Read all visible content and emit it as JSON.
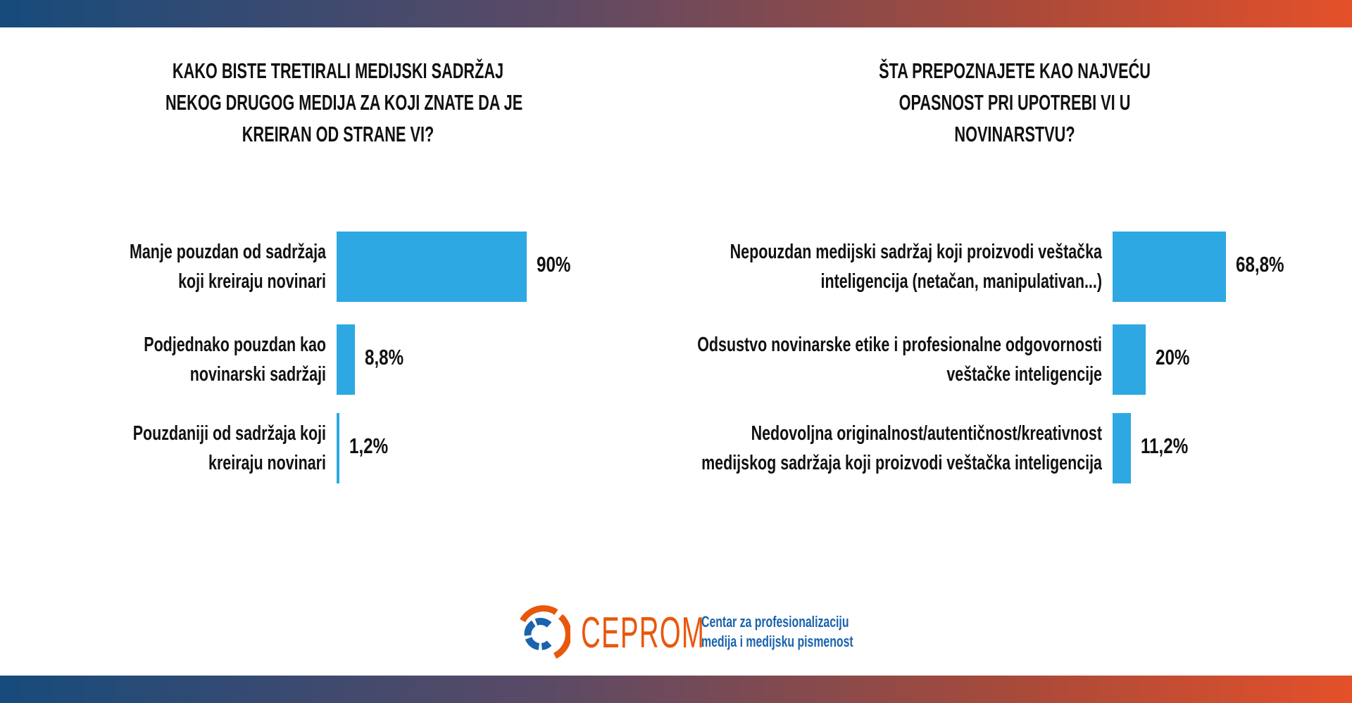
{
  "chart_data": [
    {
      "type": "bar",
      "orientation": "horizontal",
      "title_lines": [
        "KAKO BISTE TRETIRALI MEDIJSKI SADRŽAJ",
        "NEKOG DRUGOG MEDIJA ZA KOJI ZNATE DA JE",
        "KREIRAN OD STRANE VI?"
      ],
      "categories": [
        [
          "Manje pouzdan od sadržaja",
          "koji kreiraju novinari"
        ],
        [
          "Podjednako pouzdan kao",
          "novinarski sadržaji"
        ],
        [
          "Pouzdaniji od sadržaja koji",
          "kreiraju novinari"
        ]
      ],
      "values": [
        90,
        8.8,
        1.2
      ],
      "value_labels": [
        "90%",
        "8,8%",
        "1,2%"
      ],
      "unit": "%",
      "grid": false,
      "color": "#2ea8e3"
    },
    {
      "type": "bar",
      "orientation": "horizontal",
      "title_lines": [
        "ŠTA PREPOZNAJETE KAO NAJVEĆU",
        "OPASNOST PRI UPOTREBI VI U",
        "NOVINARSTVU?"
      ],
      "categories": [
        [
          "Nepouzdan medijski sadržaj koji proizvodi veštačka",
          "inteligencija (netačan, manipulativan...)"
        ],
        [
          "Odsustvo novinarske etike i profesionalne odgovornosti",
          "veštačke inteligencije"
        ],
        [
          "Nedovoljna originalnost/autentičnost/kreativnost",
          "medijskog sadržaja koji proizvodi veštačka inteligencija"
        ]
      ],
      "values": [
        68.8,
        20,
        11.2
      ],
      "value_labels": [
        "68,8%",
        "20%",
        "11,2%"
      ],
      "unit": "%",
      "grid": false,
      "color": "#2ea8e3"
    }
  ],
  "footer": {
    "logo_name": "CEPROM",
    "logo_sub": [
      "Centar za profesionalizaciju",
      "medija i medijsku pismenost"
    ],
    "orange": "#e8580c",
    "blue": "#1a63ad"
  }
}
